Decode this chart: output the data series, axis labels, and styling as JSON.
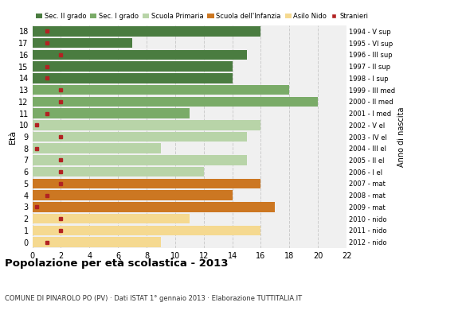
{
  "ages": [
    18,
    17,
    16,
    15,
    14,
    13,
    12,
    11,
    10,
    9,
    8,
    7,
    6,
    5,
    4,
    3,
    2,
    1,
    0
  ],
  "anno_nascita": [
    "1994 - V sup",
    "1995 - VI sup",
    "1996 - III sup",
    "1997 - II sup",
    "1998 - I sup",
    "1999 - III med",
    "2000 - II med",
    "2001 - I med",
    "2002 - V el",
    "2003 - IV el",
    "2004 - III el",
    "2005 - II el",
    "2006 - I el",
    "2007 - mat",
    "2008 - mat",
    "2009 - mat",
    "2010 - nido",
    "2011 - nido",
    "2012 - nido"
  ],
  "values": [
    16,
    7,
    15,
    14,
    14,
    18,
    20,
    11,
    16,
    15,
    9,
    15,
    12,
    16,
    14,
    17,
    11,
    16,
    9
  ],
  "foreigners": [
    1,
    1,
    2,
    1,
    1,
    2,
    2,
    1,
    0.3,
    2,
    0.3,
    2,
    2,
    2,
    1,
    0.3,
    2,
    2,
    1
  ],
  "bar_colors": [
    "#4a7c40",
    "#4a7c40",
    "#4a7c40",
    "#4a7c40",
    "#4a7c40",
    "#7aab68",
    "#7aab68",
    "#7aab68",
    "#b8d4a8",
    "#b8d4a8",
    "#b8d4a8",
    "#b8d4a8",
    "#b8d4a8",
    "#cc7722",
    "#cc7722",
    "#cc7722",
    "#f5d990",
    "#f5d990",
    "#f5d990"
  ],
  "legend_labels": [
    "Sec. II grado",
    "Sec. I grado",
    "Scuola Primaria",
    "Scuola dell'Infanzia",
    "Asilo Nido",
    "Stranieri"
  ],
  "legend_colors": [
    "#4a7c40",
    "#7aab68",
    "#b8d4a8",
    "#cc7722",
    "#f5d990",
    "#b22222"
  ],
  "title": "Popolazione per età scolastica - 2013",
  "subtitle": "COMUNE DI PINAROLO PO (PV) · Dati ISTAT 1° gennaio 2013 · Elaborazione TUTTITALIA.IT",
  "ylabel": "Età",
  "xlabel2": "Anno di nascita",
  "xlim": [
    0,
    22
  ],
  "xticks": [
    0,
    2,
    4,
    6,
    8,
    10,
    12,
    14,
    16,
    18,
    20,
    22
  ],
  "foreign_color": "#b22222",
  "bg_color": "#f0f0f0",
  "grid_color": "#cccccc"
}
